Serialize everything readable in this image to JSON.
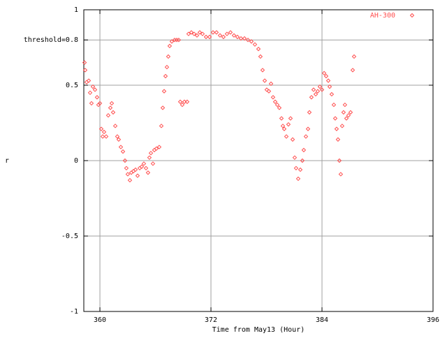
{
  "chart_data": {
    "type": "scatter",
    "xlabel": "Time from May13 (Hour)",
    "ylabel": "r",
    "xlim": [
      358.26,
      396
    ],
    "ylim": [
      -1,
      1
    ],
    "xticks": [
      360,
      372,
      384,
      396
    ],
    "yticks": [
      -1,
      -0.5,
      0,
      0.5,
      {
        "value": 0.8,
        "label": "threshold=0.8"
      },
      1
    ],
    "grid": true,
    "legend": "upper right",
    "series": [
      {
        "name": "AH-300",
        "color": "#ff4f4f",
        "x": [
          358.34,
          358.41,
          358.56,
          358.79,
          358.94,
          359.09,
          359.24,
          359.47,
          359.69,
          359.84,
          360.0,
          360.15,
          360.3,
          360.45,
          360.68,
          360.9,
          361.13,
          361.28,
          361.43,
          361.66,
          361.88,
          362.03,
          362.26,
          362.49,
          362.71,
          362.86,
          363.01,
          363.24,
          363.39,
          363.62,
          363.85,
          364.07,
          364.3,
          364.52,
          364.75,
          364.98,
          365.2,
          365.35,
          365.51,
          365.73,
          365.88,
          366.11,
          366.41,
          366.64,
          366.79,
          366.94,
          367.09,
          367.24,
          367.39,
          367.54,
          367.77,
          368.07,
          368.3,
          368.52,
          368.68,
          368.9,
          369.13,
          369.43,
          369.58,
          369.88,
          370.18,
          370.49,
          370.79,
          371.09,
          371.47,
          371.85,
          372.22,
          372.6,
          372.98,
          373.35,
          373.73,
          374.11,
          374.49,
          374.86,
          375.24,
          375.62,
          376.0,
          376.37,
          376.75,
          377.13,
          377.35,
          377.58,
          377.81,
          378.03,
          378.26,
          378.49,
          378.71,
          378.94,
          379.17,
          379.39,
          379.62,
          379.77,
          379.92,
          380.15,
          380.37,
          380.6,
          380.83,
          381.05,
          381.2,
          381.43,
          381.66,
          381.88,
          382.03,
          382.26,
          382.49,
          382.64,
          382.86,
          383.09,
          383.32,
          383.54,
          383.77,
          384.0,
          384.23,
          384.45,
          384.68,
          384.83,
          385.05,
          385.28,
          385.43,
          385.58,
          385.73,
          385.88,
          386.03,
          386.18,
          386.33,
          386.48,
          386.64,
          386.86,
          387.09,
          387.32,
          387.47
        ],
        "values": [
          0.65,
          0.6,
          0.52,
          0.53,
          0.45,
          0.38,
          0.49,
          0.47,
          0.42,
          0.37,
          0.38,
          0.21,
          0.16,
          0.19,
          0.16,
          0.3,
          0.35,
          0.38,
          0.32,
          0.23,
          0.16,
          0.14,
          0.09,
          0.06,
          0.0,
          -0.05,
          -0.09,
          -0.13,
          -0.08,
          -0.07,
          -0.06,
          -0.1,
          -0.05,
          -0.04,
          -0.02,
          -0.05,
          -0.08,
          0.02,
          0.05,
          -0.02,
          0.07,
          0.08,
          0.09,
          0.23,
          0.35,
          0.46,
          0.56,
          0.62,
          0.69,
          0.76,
          0.79,
          0.8,
          0.8,
          0.8,
          0.39,
          0.37,
          0.39,
          0.39,
          0.84,
          0.85,
          0.84,
          0.83,
          0.85,
          0.84,
          0.82,
          0.82,
          0.85,
          0.85,
          0.83,
          0.82,
          0.84,
          0.85,
          0.83,
          0.82,
          0.81,
          0.81,
          0.8,
          0.79,
          0.77,
          0.74,
          0.69,
          0.6,
          0.53,
          0.47,
          0.46,
          0.51,
          0.42,
          0.39,
          0.37,
          0.35,
          0.28,
          0.23,
          0.21,
          0.16,
          0.24,
          0.28,
          0.14,
          0.02,
          -0.05,
          -0.12,
          -0.06,
          0.0,
          0.07,
          0.16,
          0.21,
          0.32,
          0.42,
          0.47,
          0.44,
          0.46,
          0.49,
          0.47,
          0.58,
          0.56,
          0.53,
          0.49,
          0.44,
          0.37,
          0.28,
          0.21,
          0.14,
          0.0,
          -0.09,
          0.23,
          0.32,
          0.37,
          0.28,
          0.3,
          0.32,
          0.6,
          0.69
        ]
      }
    ]
  }
}
